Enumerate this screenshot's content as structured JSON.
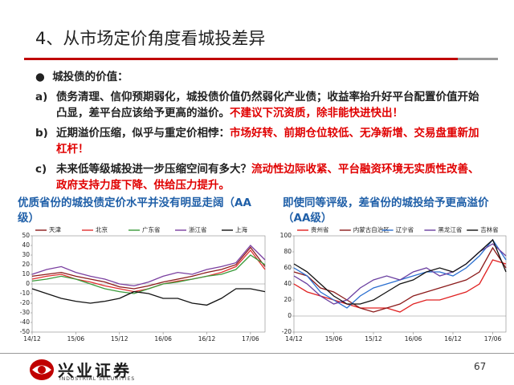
{
  "header": {
    "title": "4、从市场定价角度看城投差异"
  },
  "bullet": "城投债的价值：",
  "items": [
    {
      "label": "a)",
      "text": "债务清理、信仰预期弱化，城投债价值仍然弱化产业债；收益率抬升好平台配置价值开始凸显，差平台应该给予更高的溢价。",
      "highlight": "不建议下沉资质，除非能快进快出！"
    },
    {
      "label": "b)",
      "text": "近期溢价压缩，似乎与重定价相悖：",
      "highlight": "市场好转、前期仓位较低、无净新增、交易盘重新加杠杆！"
    },
    {
      "label": "c)",
      "text": "未来低等级城投进一步压缩空间有多大？",
      "highlight": "流动性边际收紧、平台融资环境无实质性改善、政府支持力度下降、供给压力提升。"
    }
  ],
  "chart_data": [
    {
      "type": "line",
      "title": "优质省份的城投债定价水平并没有明显走阔（AA级）",
      "x": [
        0,
        2,
        4,
        6,
        8,
        10,
        12,
        14,
        16,
        18,
        20,
        22,
        24,
        26,
        28,
        30,
        32
      ],
      "xlim": [
        0,
        32
      ],
      "xticks": [
        {
          "value": 0,
          "label": "14/12"
        },
        {
          "value": 6,
          "label": "15/06"
        },
        {
          "value": 12,
          "label": "15/12"
        },
        {
          "value": 18,
          "label": "16/06"
        },
        {
          "value": 24,
          "label": "16/12"
        },
        {
          "value": 30,
          "label": "17/06"
        }
      ],
      "ylim": [
        -50,
        50
      ],
      "yticks": [
        -50,
        -40,
        -30,
        -20,
        -10,
        0,
        10,
        20,
        30,
        40,
        50
      ],
      "series": [
        {
          "name": "天津",
          "color": "#8b1a1a",
          "values": [
            8,
            10,
            12,
            8,
            5,
            2,
            -3,
            -5,
            -2,
            2,
            5,
            8,
            12,
            15,
            20,
            38,
            18
          ]
        },
        {
          "name": "北京",
          "color": "#e03030",
          "values": [
            5,
            8,
            10,
            5,
            2,
            -2,
            -5,
            -8,
            -5,
            0,
            3,
            5,
            8,
            12,
            18,
            35,
            15
          ]
        },
        {
          "name": "广东省",
          "color": "#3a9a3a",
          "values": [
            3,
            5,
            8,
            5,
            0,
            -5,
            -8,
            -10,
            -5,
            0,
            2,
            5,
            8,
            10,
            15,
            30,
            20
          ]
        },
        {
          "name": "浙江省",
          "color": "#7a3fa0",
          "values": [
            10,
            15,
            18,
            12,
            8,
            5,
            0,
            -2,
            2,
            8,
            12,
            10,
            15,
            18,
            22,
            40,
            25
          ]
        },
        {
          "name": "上海",
          "color": "#111111",
          "values": [
            -5,
            -10,
            -15,
            -18,
            -20,
            -18,
            -15,
            -8,
            -10,
            -15,
            -15,
            -20,
            -22,
            -15,
            -5,
            -5,
            -8
          ]
        }
      ]
    },
    {
      "type": "line",
      "title": "即使同等评级，差省份的城投给予更高溢价（AA级）",
      "x": [
        0,
        2,
        4,
        6,
        8,
        10,
        12,
        14,
        16,
        18,
        20,
        22,
        24,
        26,
        28,
        30,
        32
      ],
      "xlim": [
        0,
        32
      ],
      "xticks": [
        {
          "value": 0,
          "label": "14/12"
        },
        {
          "value": 6,
          "label": "15/06"
        },
        {
          "value": 12,
          "label": "15/12"
        },
        {
          "value": 18,
          "label": "16/06"
        },
        {
          "value": 24,
          "label": "16/12"
        },
        {
          "value": 30,
          "label": "17/06"
        }
      ],
      "ylim": [
        -20,
        100
      ],
      "yticks": [
        -20,
        0,
        20,
        40,
        60,
        80,
        100
      ],
      "series": [
        {
          "name": "贵州省",
          "color": "#e02020",
          "values": [
            40,
            30,
            25,
            20,
            15,
            10,
            10,
            10,
            5,
            15,
            20,
            20,
            25,
            30,
            40,
            70,
            65
          ]
        },
        {
          "name": "内蒙古自治区",
          "color": "#8b1a1a",
          "values": [
            55,
            50,
            35,
            30,
            20,
            10,
            5,
            10,
            15,
            25,
            30,
            35,
            40,
            45,
            55,
            85,
            60
          ]
        },
        {
          "name": "辽宁省",
          "color": "#2a6fd0",
          "values": [
            60,
            50,
            30,
            20,
            10,
            25,
            35,
            40,
            45,
            50,
            55,
            55,
            50,
            60,
            75,
            95,
            70
          ]
        },
        {
          "name": "黑龙江省",
          "color": "#6a3fa0",
          "values": [
            50,
            40,
            25,
            15,
            20,
            35,
            45,
            50,
            45,
            55,
            60,
            50,
            55,
            65,
            80,
            90,
            75
          ]
        },
        {
          "name": "吉林省",
          "color": "#111111",
          "values": [
            65,
            55,
            40,
            25,
            15,
            15,
            20,
            30,
            40,
            45,
            55,
            60,
            55,
            65,
            80,
            95,
            55
          ]
        }
      ]
    }
  ],
  "footer": {
    "logo": "兴业证券",
    "logo_en": "INDUSTRIAL SECURITIES",
    "page": "67"
  }
}
